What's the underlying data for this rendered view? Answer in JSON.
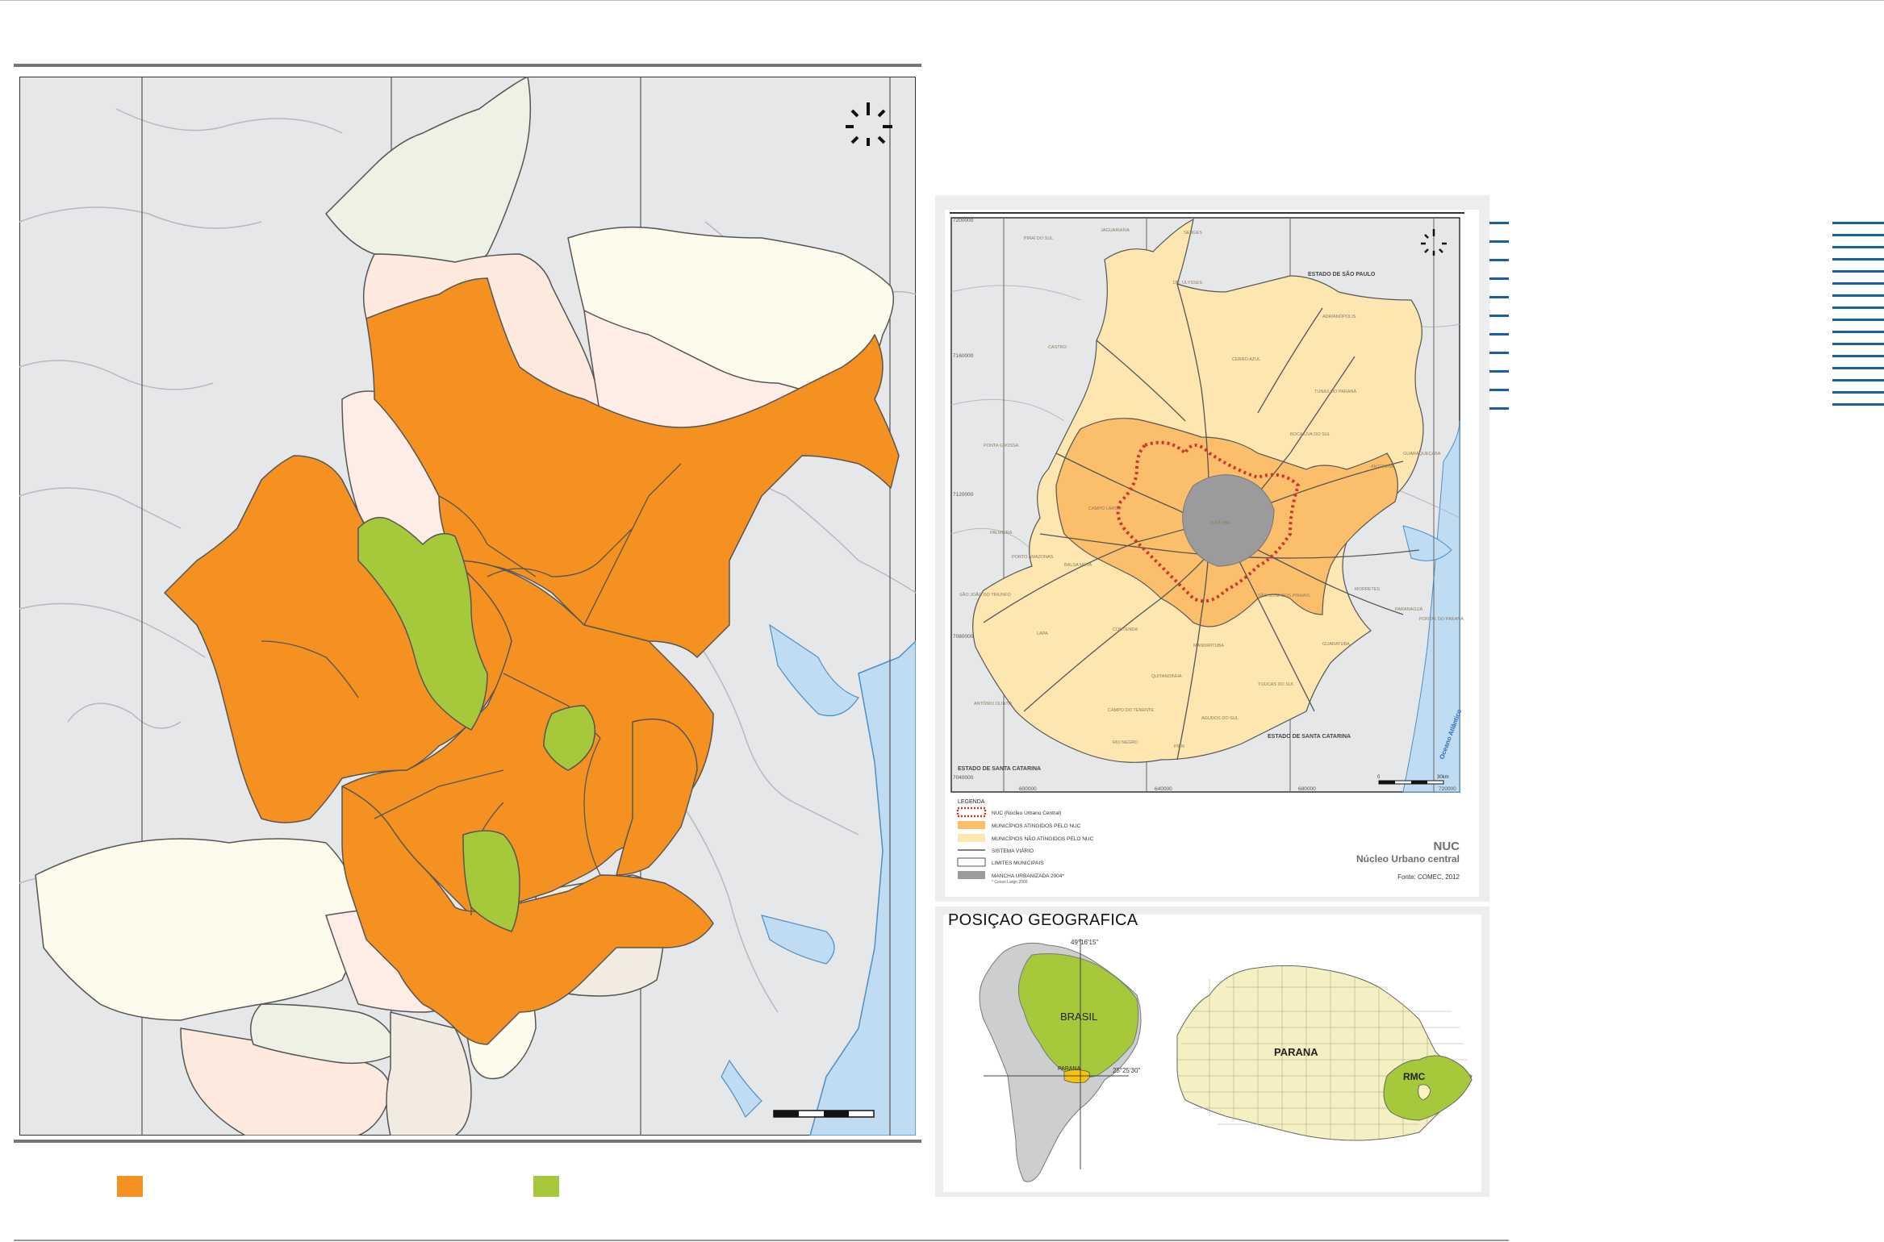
{
  "colors": {
    "affected": "#f49120",
    "green": "#a5c93a",
    "light_cream": "#fdfbeb",
    "light_pink": "#fdede6",
    "light_peach": "#fde9dd",
    "light_green": "#eef2e4",
    "light_taupe": "#f2ebe2",
    "background_gray": "#e6e7e9",
    "water": "#bfdcf2",
    "accent_blue": "#1b5fa6"
  },
  "nuc_map": {
    "coord_labels": [
      "7200000",
      "7160000",
      "7120000",
      "7080000",
      "7040000",
      "600000",
      "640000",
      "680000",
      "720000"
    ],
    "region_labels": {
      "sao_paulo": "ESTADO DE SÃO PAULO",
      "santa_catarina_1": "ESTADO DE SANTA CATARINA",
      "santa_catarina_2": "ESTADO DE SANTA CATARINA",
      "ocean": "Oceano Atlântico"
    },
    "municipality_labels": [
      "PIRAÍ DO SUL",
      "JAGUARIAÍVA",
      "SENGES",
      "DR. ULYSSES",
      "ADRIANÓPOLIS",
      "CASTRO",
      "CERRO AZUL",
      "TUNAS DO PARANÁ",
      "BOCAIÚVA DO SUL",
      "PONTA GROSSA",
      "CAMPO LARGO",
      "BALSA NOVA",
      "ANTONINA",
      "GUARAQUEÇABA",
      "PALMEIRA",
      "PORTO AMAZONAS",
      "MORRETES",
      "LAPA",
      "CONTENDA",
      "PARANAGUÁ",
      "MANDIRITUBA",
      "TIJUCAS DO SUL",
      "GUARATUBA",
      "RIO NEGRO",
      "QUITANDINHA",
      "AGUDOS DO SUL",
      "PIÊN",
      "CAMPO DO TENENTE",
      "ANTÔNIO OLINTO",
      "SÃO JOÃO DO TRIUNFO",
      "CURITIBA",
      "SÃO JOSÉ DOS PINHAIS",
      "PONTAL DO PARANÁ"
    ],
    "legend_title": "LEGENDA",
    "legend_items": [
      "NUC (Núcleo Urbano Central)",
      "MUNICÍPIOS ATINGIDOS PELO NUC",
      "MUNICÍPIOS NÃO ATINGIDOS PELO NUC",
      "SISTEMA VIÁRIO",
      "LIMITES MUNICIPAIS",
      "MANCHA URBANIZADA 2004*"
    ],
    "legend_note": "* Censo Largo 2000",
    "title": "NUC",
    "subtitle": "Núcleo Urbano central",
    "source": "Fonte: COMEC, 2012",
    "scale_start": "0",
    "scale_end": "30km"
  },
  "posicao": {
    "title": "POSIÇAO GEOGRAFICA",
    "brasil": "BRASIL",
    "parana_small": "PARANA",
    "longitude": "49°16'15\"",
    "latitude": "25°25'30\"",
    "parana": "PARANA",
    "rmc": "RMC"
  }
}
